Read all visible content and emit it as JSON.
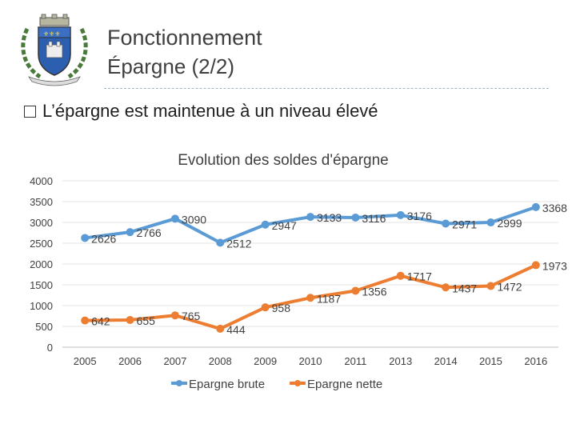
{
  "header": {
    "title": "Fonctionnement",
    "subtitle": "Épargne (2/2)"
  },
  "bullet": {
    "marker": "�",
    "text": "L’épargne est maintenue à un niveau élevé"
  },
  "chart_data": {
    "type": "line",
    "title": "Evolution des soldes d'épargne",
    "categories": [
      "2005",
      "2006",
      "2007",
      "2008",
      "2009",
      "2010",
      "2011",
      "2013",
      "2014",
      "2015",
      "2016"
    ],
    "ylim": [
      0,
      4000
    ],
    "yticks": [
      0,
      500,
      1000,
      1500,
      2000,
      2500,
      3000,
      3500,
      4000
    ],
    "grid": true,
    "legend": "bottom",
    "series": [
      {
        "name": "Epargne brute",
        "color": "#5b9bd5",
        "values": [
          2626,
          2766,
          3090,
          2512,
          2947,
          3133,
          3116,
          3176,
          2971,
          2999,
          3368
        ]
      },
      {
        "name": "Epargne nette",
        "color": "#ed7d31",
        "values": [
          642,
          655,
          765,
          444,
          958,
          1187,
          1356,
          1717,
          1437,
          1472,
          1973
        ]
      }
    ]
  }
}
